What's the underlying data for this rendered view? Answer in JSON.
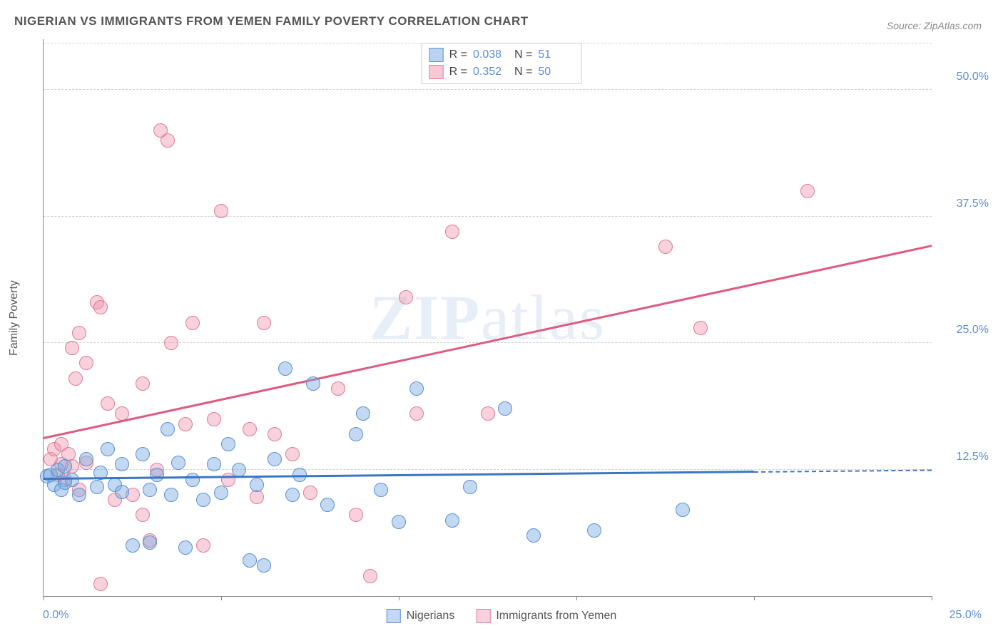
{
  "title": "NIGERIAN VS IMMIGRANTS FROM YEMEN FAMILY POVERTY CORRELATION CHART",
  "source": "Source: ZipAtlas.com",
  "ylabel": "Family Poverty",
  "watermark_bold": "ZIP",
  "watermark_light": "atlas",
  "axes": {
    "xlim": [
      0,
      25
    ],
    "ylim": [
      0,
      55
    ],
    "x_origin_label": "0.0%",
    "x_max_label": "25.0%",
    "y_ticks": [
      12.5,
      25.0,
      37.5,
      50.0
    ],
    "y_tick_labels": [
      "12.5%",
      "25.0%",
      "37.5%",
      "50.0%"
    ],
    "x_minor_ticks": [
      0,
      5,
      10,
      15,
      20,
      25
    ],
    "grid_color": "#d0d0d0",
    "axis_color": "#888888"
  },
  "stats_legend": {
    "rows": [
      {
        "swatch_fill": "#b8d4f0",
        "swatch_border": "#5b8fd6",
        "r_label": "R =",
        "r": "0.038",
        "n_label": "N =",
        "n": "51"
      },
      {
        "swatch_fill": "#f7c9d4",
        "swatch_border": "#e37b95",
        "r_label": "R =",
        "r": "0.352",
        "n_label": "N =",
        "n": "50"
      }
    ]
  },
  "series": {
    "nigerians": {
      "label": "Nigerians",
      "fill": "rgba(120,170,225,0.45)",
      "stroke": "#5b8fd6",
      "marker_radius": 10,
      "trend_color": "#3a76c4",
      "trend": {
        "x1": 0,
        "y1": 11.5,
        "x2": 20,
        "y2": 12.2,
        "dash_to_x": 25
      },
      "points": [
        [
          0.1,
          11.8
        ],
        [
          0.2,
          12.0
        ],
        [
          0.3,
          11.0
        ],
        [
          0.4,
          12.5
        ],
        [
          0.5,
          10.5
        ],
        [
          0.6,
          11.2
        ],
        [
          0.6,
          12.8
        ],
        [
          0.8,
          11.5
        ],
        [
          1.0,
          10.0
        ],
        [
          1.2,
          13.5
        ],
        [
          1.5,
          10.8
        ],
        [
          1.6,
          12.2
        ],
        [
          1.8,
          14.5
        ],
        [
          2.0,
          11.0
        ],
        [
          2.2,
          13.0
        ],
        [
          2.2,
          10.3
        ],
        [
          2.5,
          5.0
        ],
        [
          2.8,
          14.0
        ],
        [
          3.0,
          10.5
        ],
        [
          3.0,
          5.3
        ],
        [
          3.2,
          12.0
        ],
        [
          3.5,
          16.5
        ],
        [
          3.6,
          10.0
        ],
        [
          3.8,
          13.2
        ],
        [
          4.0,
          4.8
        ],
        [
          4.2,
          11.5
        ],
        [
          4.5,
          9.5
        ],
        [
          4.8,
          13.0
        ],
        [
          5.0,
          10.2
        ],
        [
          5.2,
          15.0
        ],
        [
          5.5,
          12.5
        ],
        [
          5.8,
          3.5
        ],
        [
          6.0,
          11.0
        ],
        [
          6.2,
          3.0
        ],
        [
          6.5,
          13.5
        ],
        [
          6.8,
          22.5
        ],
        [
          7.0,
          10.0
        ],
        [
          7.2,
          12.0
        ],
        [
          7.6,
          21.0
        ],
        [
          8.0,
          9.0
        ],
        [
          8.8,
          16.0
        ],
        [
          9.0,
          18.0
        ],
        [
          9.5,
          10.5
        ],
        [
          10.0,
          7.3
        ],
        [
          10.5,
          20.5
        ],
        [
          11.5,
          7.5
        ],
        [
          12.0,
          10.8
        ],
        [
          13.0,
          18.5
        ],
        [
          13.8,
          6.0
        ],
        [
          15.5,
          6.5
        ],
        [
          18.0,
          8.5
        ]
      ]
    },
    "yemen": {
      "label": "Immigrants from Yemen",
      "fill": "rgba(235,140,165,0.40)",
      "stroke": "#e37b95",
      "marker_radius": 10,
      "trend_color": "#e05a7e",
      "trend": {
        "x1": 0,
        "y1": 15.5,
        "x2": 25,
        "y2": 34.5
      },
      "points": [
        [
          0.2,
          13.5
        ],
        [
          0.3,
          14.5
        ],
        [
          0.4,
          12.0
        ],
        [
          0.5,
          15.0
        ],
        [
          0.5,
          13.0
        ],
        [
          0.6,
          11.5
        ],
        [
          0.7,
          14.0
        ],
        [
          0.8,
          12.8
        ],
        [
          0.8,
          24.5
        ],
        [
          0.9,
          21.5
        ],
        [
          1.0,
          26.0
        ],
        [
          1.0,
          10.5
        ],
        [
          1.2,
          23.0
        ],
        [
          1.2,
          13.2
        ],
        [
          1.5,
          29.0
        ],
        [
          1.6,
          28.5
        ],
        [
          1.6,
          1.2
        ],
        [
          1.8,
          19.0
        ],
        [
          2.0,
          9.5
        ],
        [
          2.2,
          18.0
        ],
        [
          2.5,
          10.0
        ],
        [
          2.8,
          21.0
        ],
        [
          2.8,
          8.0
        ],
        [
          3.0,
          5.5
        ],
        [
          3.2,
          12.5
        ],
        [
          3.3,
          46.0
        ],
        [
          3.5,
          45.0
        ],
        [
          3.6,
          25.0
        ],
        [
          4.0,
          17.0
        ],
        [
          4.2,
          27.0
        ],
        [
          4.5,
          5.0
        ],
        [
          4.8,
          17.5
        ],
        [
          5.0,
          38.0
        ],
        [
          5.2,
          11.5
        ],
        [
          5.8,
          16.5
        ],
        [
          6.0,
          9.8
        ],
        [
          6.2,
          27.0
        ],
        [
          6.5,
          16.0
        ],
        [
          7.0,
          14.0
        ],
        [
          7.5,
          10.2
        ],
        [
          8.3,
          20.5
        ],
        [
          8.8,
          8.0
        ],
        [
          9.2,
          2.0
        ],
        [
          10.2,
          29.5
        ],
        [
          10.5,
          18.0
        ],
        [
          11.5,
          36.0
        ],
        [
          12.5,
          18.0
        ],
        [
          17.5,
          34.5
        ],
        [
          18.5,
          26.5
        ],
        [
          21.5,
          40.0
        ]
      ]
    }
  }
}
